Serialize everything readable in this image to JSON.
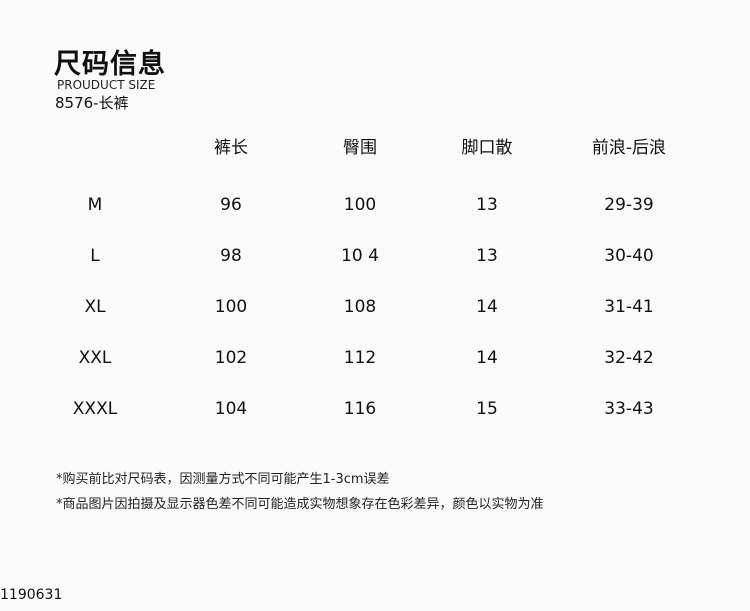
{
  "header": {
    "title": "尺码信息",
    "subtitle": "PROUDUCT SIZE",
    "model": "8576-长裤"
  },
  "table": {
    "columns": [
      "",
      "裤长",
      "臀围",
      "脚口散",
      "前浪-后浪"
    ],
    "rows": [
      [
        "M",
        "96",
        "100",
        "13",
        "29-39"
      ],
      [
        "L",
        "98",
        "10 4",
        "13",
        "30-40"
      ],
      [
        "XL",
        "100",
        "108",
        "14",
        "31-41"
      ],
      [
        "XXL",
        "102",
        "112",
        "14",
        "32-42"
      ],
      [
        "XXXL",
        "104",
        "116",
        "15",
        "33-43"
      ]
    ]
  },
  "notes": [
    "*购买前比对尺码表，因测量方式不同可能产生1-3cm误差",
    "*商品图片因拍摄及显示器色差不同可能造成实物想象存在色彩差异，颜色以实物为准"
  ],
  "code": "1190631"
}
